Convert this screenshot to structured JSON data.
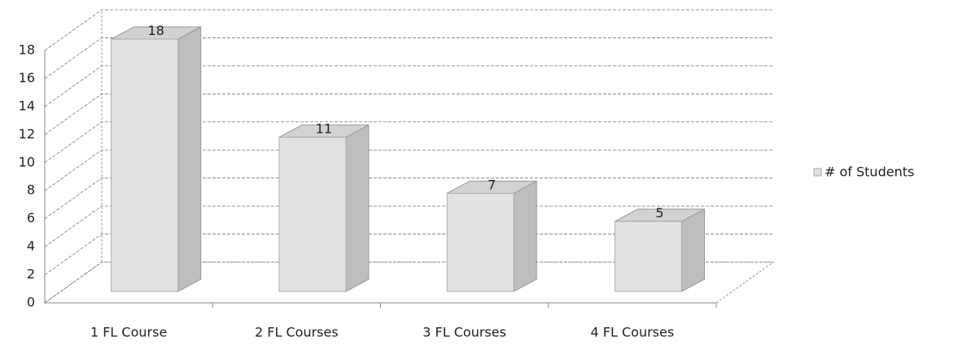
{
  "chart_data": {
    "type": "bar3d",
    "categories": [
      "1 FL Course",
      "2 FL Courses",
      "3 FL Courses",
      "4 FL Courses"
    ],
    "series": [
      {
        "name": "# of Students",
        "color": "#e2e2e2",
        "values": [
          18,
          11,
          7,
          5
        ]
      }
    ],
    "ylim": [
      0,
      18
    ],
    "yticks": [
      0,
      2,
      4,
      6,
      8,
      10,
      12,
      14,
      16,
      18
    ],
    "grid": true,
    "legend": "right",
    "data_labels": true
  }
}
